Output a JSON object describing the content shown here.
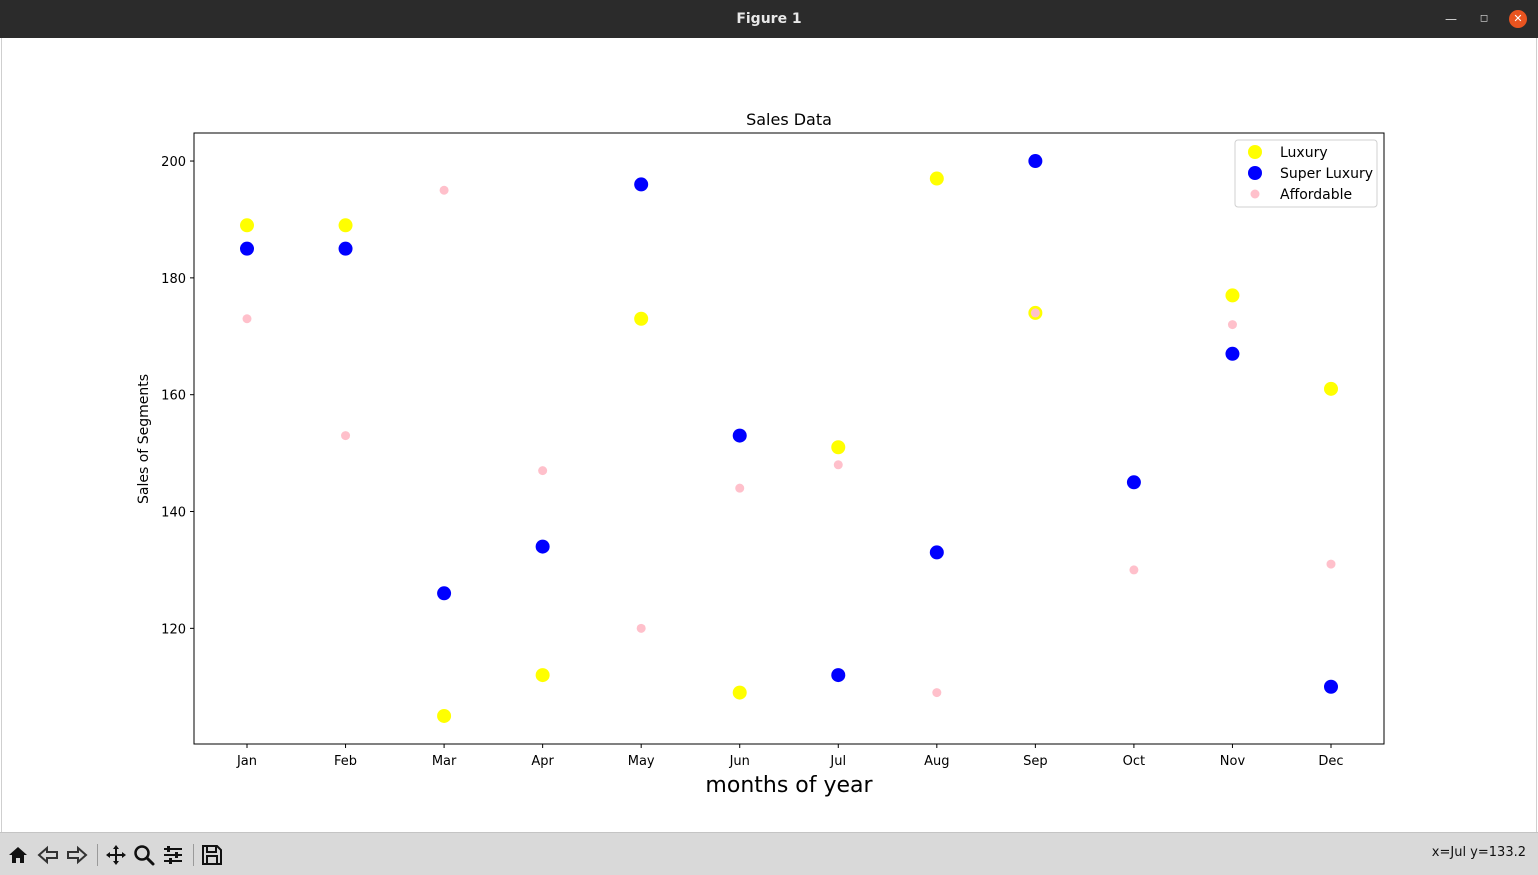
{
  "window": {
    "title": "Figure 1"
  },
  "status": {
    "coords": "x=Jul y=133.2"
  },
  "toolbar": {
    "buttons": [
      {
        "icon": "home-icon"
      },
      {
        "icon": "back-arrow-icon"
      },
      {
        "icon": "forward-arrow-icon"
      },
      {
        "icon": "pan-icon"
      },
      {
        "icon": "zoom-icon"
      },
      {
        "icon": "configure-subplots-icon"
      },
      {
        "icon": "save-icon"
      }
    ]
  },
  "chart_data": {
    "type": "scatter",
    "title": "Sales Data",
    "xlabel": "months of year",
    "ylabel": "Sales of Segments",
    "categories": [
      "Jan",
      "Feb",
      "Mar",
      "Apr",
      "May",
      "Jun",
      "Jul",
      "Aug",
      "Sep",
      "Oct",
      "Nov",
      "Dec"
    ],
    "yticks": [
      120,
      140,
      160,
      180,
      200
    ],
    "ylim": [
      100.2,
      204.8
    ],
    "legend_position": "upper right",
    "grid": false,
    "series": [
      {
        "name": "Luxury",
        "color": "#ffff00",
        "size": "large",
        "values": [
          189,
          189,
          105,
          112,
          173,
          109,
          151,
          197,
          174,
          null,
          177,
          161
        ]
      },
      {
        "name": "Super Luxury",
        "color": "#0000ff",
        "size": "large",
        "values": [
          185,
          185,
          126,
          134,
          196,
          153,
          112,
          133,
          200,
          145,
          167,
          110
        ]
      },
      {
        "name": "Affordable",
        "color": "#ffc0cb",
        "size": "small",
        "values": [
          173,
          153,
          195,
          147,
          120,
          144,
          148,
          109,
          174,
          130,
          172,
          131
        ]
      }
    ]
  }
}
